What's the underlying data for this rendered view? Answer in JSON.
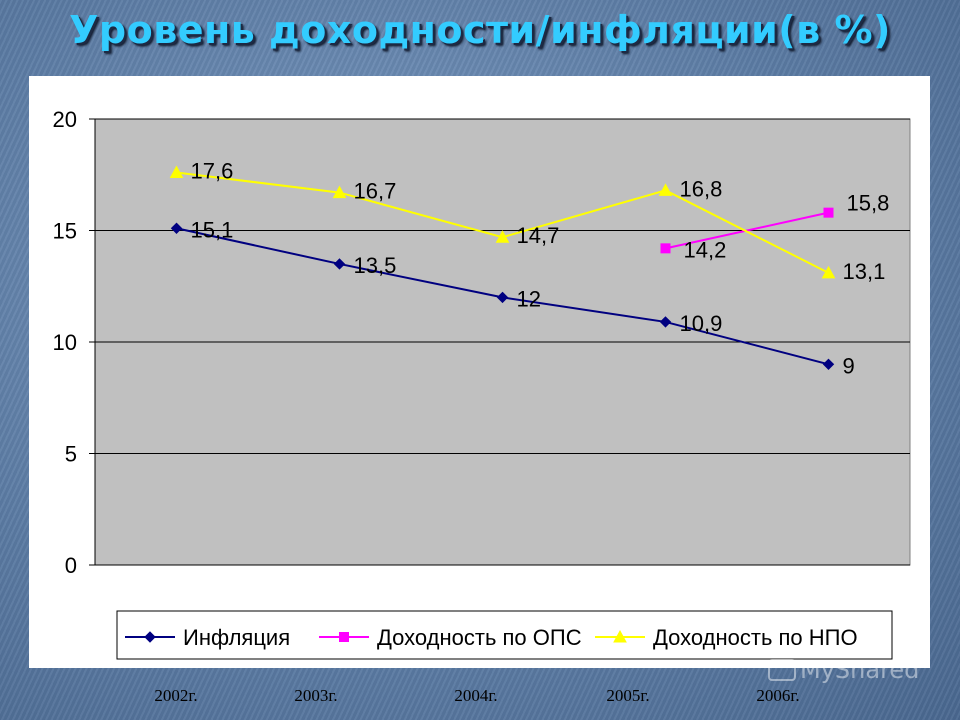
{
  "title": "Уровень доходности/инфляции(в %)",
  "watermark": "MyShared",
  "chart_data": {
    "type": "line",
    "categories": [
      "2002г.",
      "2003г.",
      "2004г.",
      "2005г.",
      "2006г."
    ],
    "ylim": [
      0,
      20
    ],
    "yticks": [
      0,
      5,
      10,
      15,
      20
    ],
    "grid": true,
    "legend_position": "bottom",
    "plot_background": "#c0c0c0",
    "series": [
      {
        "name": "Инфляция",
        "color": "#000080",
        "marker": "diamond",
        "values": [
          15.1,
          13.5,
          12,
          10.9,
          9
        ],
        "labels": [
          "15,1",
          "13,5",
          "12",
          "10,9",
          "9"
        ]
      },
      {
        "name": "Доходность по ОПС",
        "color": "#ff00ff",
        "marker": "square",
        "values": [
          null,
          null,
          null,
          14.2,
          15.8
        ],
        "labels": [
          "",
          "",
          "",
          "14,2",
          "15,8"
        ]
      },
      {
        "name": "Доходность по НПО",
        "color": "#ffff00",
        "marker": "triangle",
        "values": [
          17.6,
          16.7,
          14.7,
          16.8,
          13.1
        ],
        "labels": [
          "17,6",
          "16,7",
          "14,7",
          "16,8",
          "13,1"
        ]
      }
    ]
  }
}
